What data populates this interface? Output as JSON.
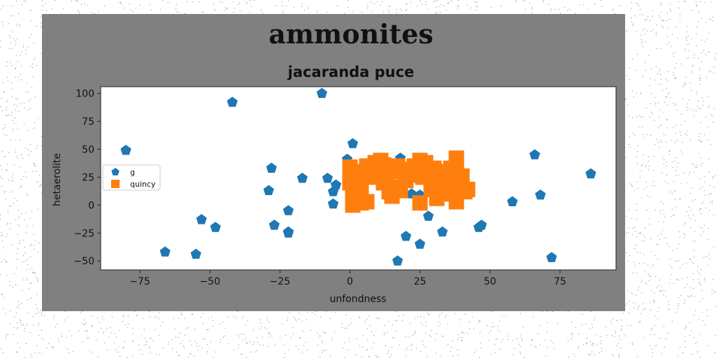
{
  "chart_data": {
    "type": "scatter",
    "title": "ammonites",
    "subtitle": "jacaranda puce",
    "xlabel": "unfondness",
    "ylabel": "hetaerolite",
    "xlim": [
      -89,
      95
    ],
    "ylim": [
      -58,
      106
    ],
    "xticks": [
      -75,
      -50,
      -25,
      0,
      25,
      50,
      75
    ],
    "yticks": [
      -50,
      -25,
      0,
      25,
      50,
      75,
      100
    ],
    "grid": false,
    "legend_position": "center-left",
    "series": [
      {
        "name": "g",
        "marker": "pentagon",
        "color": "#1f77b4",
        "points": [
          [
            -80,
            49
          ],
          [
            -42,
            92
          ],
          [
            -10,
            100
          ],
          [
            -28,
            33
          ],
          [
            -17,
            24
          ],
          [
            -29,
            13
          ],
          [
            -22,
            -5
          ],
          [
            -27,
            -18
          ],
          [
            -22,
            -24
          ],
          [
            -22,
            -25
          ],
          [
            -53,
            -13
          ],
          [
            -48,
            -20
          ],
          [
            -66,
            -42
          ],
          [
            -55,
            -44
          ],
          [
            -8,
            24
          ],
          [
            -6,
            12
          ],
          [
            -5,
            18
          ],
          [
            -6,
            1
          ],
          [
            -1,
            41
          ],
          [
            1,
            55
          ],
          [
            18,
            42
          ],
          [
            22,
            10
          ],
          [
            25,
            9
          ],
          [
            36,
            8
          ],
          [
            28,
            -10
          ],
          [
            33,
            -24
          ],
          [
            20,
            -28
          ],
          [
            25,
            -35
          ],
          [
            17,
            -50
          ],
          [
            46,
            -20
          ],
          [
            47,
            -18
          ],
          [
            58,
            3
          ],
          [
            66,
            45
          ],
          [
            68,
            9
          ],
          [
            72,
            -47
          ],
          [
            86,
            28
          ]
        ]
      },
      {
        "name": "quincy",
        "marker": "square",
        "color": "#ff7f0e",
        "points": [
          [
            0,
            34
          ],
          [
            0,
            27
          ],
          [
            0,
            20
          ],
          [
            1,
            12
          ],
          [
            1,
            5
          ],
          [
            1,
            0
          ],
          [
            3,
            30
          ],
          [
            4,
            22
          ],
          [
            4,
            10
          ],
          [
            4,
            2
          ],
          [
            6,
            3
          ],
          [
            6,
            35
          ],
          [
            7,
            28
          ],
          [
            9,
            38
          ],
          [
            9,
            25
          ],
          [
            10,
            32
          ],
          [
            11,
            40
          ],
          [
            12,
            36
          ],
          [
            12,
            20
          ],
          [
            13,
            28
          ],
          [
            14,
            12
          ],
          [
            15,
            16
          ],
          [
            15,
            8
          ],
          [
            16,
            30
          ],
          [
            17,
            35
          ],
          [
            18,
            32
          ],
          [
            18,
            13
          ],
          [
            20,
            22
          ],
          [
            21,
            27
          ],
          [
            23,
            35
          ],
          [
            23,
            28
          ],
          [
            24,
            32
          ],
          [
            25,
            40
          ],
          [
            25,
            2
          ],
          [
            26,
            25
          ],
          [
            27,
            38
          ],
          [
            28,
            30
          ],
          [
            29,
            14
          ],
          [
            30,
            33
          ],
          [
            30,
            20
          ],
          [
            31,
            6
          ],
          [
            32,
            22
          ],
          [
            33,
            10
          ],
          [
            34,
            18
          ],
          [
            34,
            30
          ],
          [
            35,
            23
          ],
          [
            36,
            33
          ],
          [
            37,
            15
          ],
          [
            38,
            36
          ],
          [
            38,
            28
          ],
          [
            38,
            42
          ],
          [
            38,
            3
          ],
          [
            39,
            20
          ],
          [
            40,
            26
          ],
          [
            40,
            17
          ],
          [
            41,
            12
          ],
          [
            42,
            14
          ]
        ]
      }
    ]
  }
}
